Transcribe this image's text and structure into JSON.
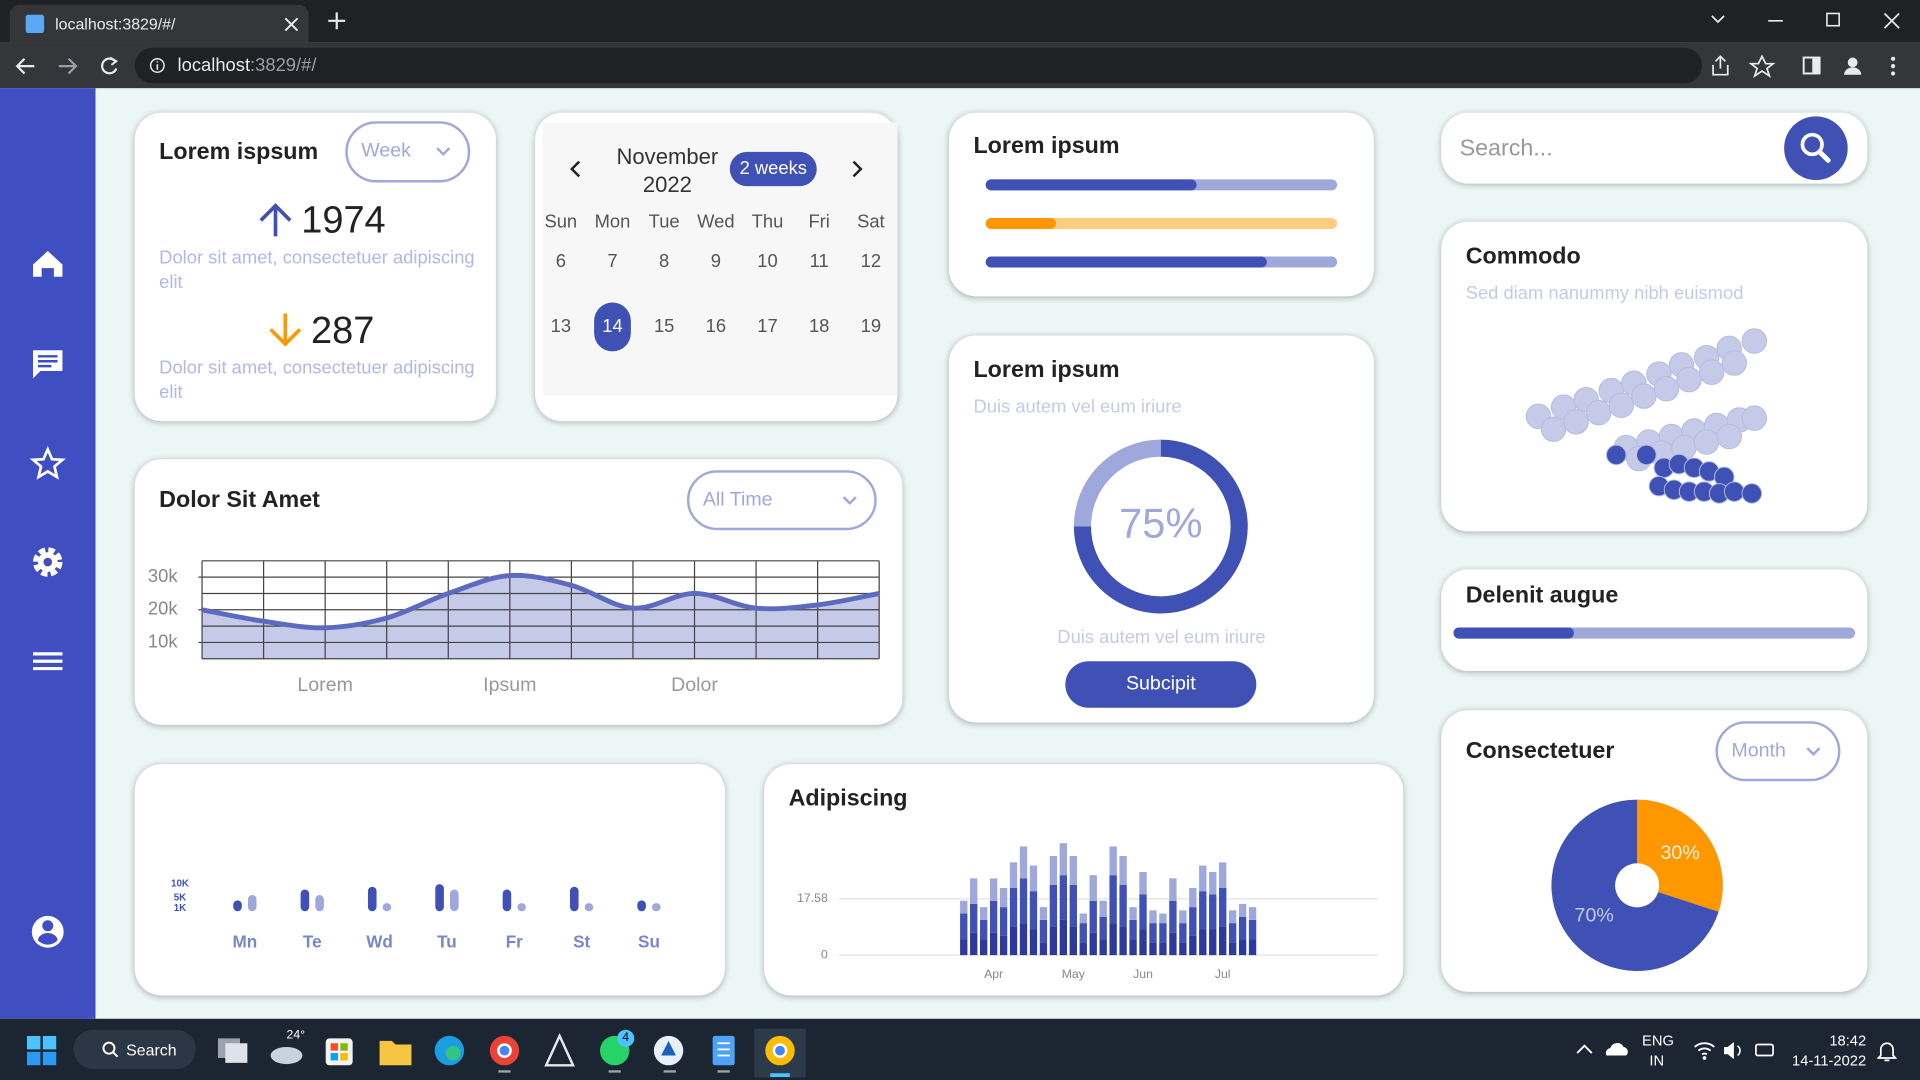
{
  "browser": {
    "tab_title": "localhost:3829/#/",
    "url_host": "localhost",
    "url_rest": ":3829/#/"
  },
  "taskbar": {
    "search": "Search",
    "weather": "24°",
    "badge": "4",
    "lang": "ENG",
    "region": "IN",
    "time": "18:42",
    "date": "14-11-2022"
  },
  "summary": {
    "title": "Lorem ispsum",
    "filter": "Week",
    "stats": [
      {
        "value": 1974,
        "text": "Dolor sit amet, consectetuer adipiscing elit"
      },
      {
        "value": 287,
        "text": "Dolor sit amet, consectetuer adipiscing elit"
      }
    ]
  },
  "calendar": {
    "title": "November 2022",
    "range": "2 weeks",
    "weekdays": [
      "Sun",
      "Mon",
      "Tue",
      "Wed",
      "Thu",
      "Fri",
      "Sat"
    ],
    "weeks": [
      [
        6,
        7,
        8,
        9,
        10,
        11,
        12
      ],
      [
        13,
        14,
        15,
        16,
        17,
        18,
        19
      ]
    ],
    "selected": 14
  },
  "progress": {
    "title": "Lorem ipsum",
    "xlim": [
      0,
      100
    ],
    "bars": [
      {
        "value": 60,
        "color": "#3f51b5",
        "track": "#9fa8da"
      },
      {
        "value": 20,
        "color": "#ff9800",
        "track": "#ffcc80"
      },
      {
        "value": 80,
        "color": "#3f51b5",
        "track": "#9fa8da"
      }
    ]
  },
  "search": {
    "placeholder": "Search..."
  },
  "commodo": {
    "title": "Commodo",
    "subtitle": "Sed diam nanummy nibh euismod",
    "chart": {
      "type": "scatter",
      "xlim": [
        0,
        100
      ],
      "ylim": [
        0,
        100
      ],
      "series": [
        {
          "color": "#c5cae9",
          "x": [
            8,
            18,
            27,
            37,
            46,
            56,
            65,
            75,
            84,
            94,
            14,
            23,
            32,
            41,
            50,
            59,
            68,
            77,
            86
          ],
          "y": [
            50,
            55,
            59,
            64,
            68,
            73,
            78,
            82,
            87,
            91,
            43,
            47,
            52,
            56,
            61,
            65,
            70,
            74,
            79
          ]
        },
        {
          "color": "#c5cae9",
          "x": [
            43,
            52,
            61,
            70,
            79,
            88,
            94,
            48,
            57,
            66,
            75,
            84
          ],
          "y": [
            33,
            36,
            39,
            42,
            45,
            48,
            49,
            27,
            30,
            33,
            36,
            39
          ]
        },
        {
          "color": "#3f51b5",
          "x": [
            39,
            51,
            58,
            64,
            70,
            76,
            82,
            56,
            62,
            68,
            74,
            80,
            86,
            93
          ],
          "y": [
            29,
            29,
            22,
            24,
            22,
            20,
            17,
            12,
            10,
            9,
            9,
            8,
            9,
            8
          ]
        }
      ]
    }
  },
  "delenit": {
    "title": "Delenit augue",
    "value": 30,
    "xlim": [
      0,
      100
    ],
    "color": "#3f51b5",
    "track": "#9fa8da"
  },
  "dolor": {
    "title": "Dolor Sit Amet",
    "filter": "All Time",
    "chart": {
      "type": "line",
      "x": [
        0,
        1,
        2,
        3,
        4,
        5,
        6,
        7,
        8,
        9,
        10,
        11
      ],
      "values": [
        20000,
        16500,
        14500,
        17500,
        25000,
        30500,
        27500,
        20500,
        25000,
        20500,
        21500,
        25000
      ],
      "xlim": [
        0,
        11
      ],
      "xticks": [
        {
          "value": 2,
          "label": "Lorem"
        },
        {
          "value": 5,
          "label": "Ipsum"
        },
        {
          "value": 8,
          "label": "Dolor"
        }
      ],
      "ylim": [
        5000,
        35000
      ],
      "yticks": [
        {
          "value": 10000,
          "label": "10k"
        },
        {
          "value": 20000,
          "label": "20k"
        },
        {
          "value": 30000,
          "label": "30k"
        }
      ],
      "xgrid": [
        0,
        1,
        2,
        3,
        4,
        5,
        6,
        7,
        8,
        9,
        10,
        11
      ],
      "ygrid": [
        5000,
        10000,
        15000,
        20000,
        25000,
        30000,
        35000
      ],
      "color": "#5c6bc0",
      "fill": "#c5cae9"
    }
  },
  "gauge": {
    "title": "Lorem ipsum",
    "subtitle": "Duis autem vel eum iriure",
    "chart": {
      "type": "donut",
      "value": 75,
      "value_label": "75%",
      "max": 100,
      "color": "#3f51b5",
      "track": "#9fa8da"
    },
    "caption": "Duis autem vel eum iriure",
    "button": "Subcipit"
  },
  "weekly": {
    "chart": {
      "type": "bar",
      "rounded": true,
      "categories": [
        "Mn",
        "Te",
        "Wd",
        "Tu",
        "Fr",
        "St",
        "Su"
      ],
      "series": [
        {
          "color": "#3f51b5",
          "values": [
            4000,
            8000,
            9000,
            10000,
            8000,
            9000,
            4000
          ]
        },
        {
          "color": "#9fa8da",
          "values": [
            6000,
            6000,
            3000,
            8000,
            3000,
            3000,
            3000
          ]
        }
      ],
      "ylim": [
        0,
        10000
      ],
      "yticks": [
        {
          "value": 10000,
          "label": "10K"
        },
        {
          "value": 5000,
          "label": "5K"
        },
        {
          "value": 1000,
          "label": "1K"
        }
      ],
      "grid": false
    }
  },
  "adipiscing": {
    "title": "Adipiscing",
    "chart": {
      "type": "bar",
      "stacked": true,
      "categories": [
        null,
        null,
        null,
        "Apr",
        null,
        null,
        null,
        null,
        null,
        null,
        null,
        "May",
        null,
        null,
        null,
        null,
        null,
        null,
        "Jun",
        null,
        null,
        null,
        null,
        null,
        null,
        null,
        "Jul",
        null,
        null,
        null
      ],
      "series": [
        {
          "color": "#2c3a9e",
          "values": [
            5,
            7,
            5,
            7,
            6,
            9,
            10,
            8,
            4,
            9,
            11,
            9,
            4,
            7,
            5,
            10,
            9,
            5,
            8,
            4,
            4,
            7,
            4,
            6,
            8,
            8,
            9,
            4,
            5,
            5
          ]
        },
        {
          "color": "#3f51b5",
          "values": [
            8,
            9,
            6,
            10,
            9,
            12,
            14,
            12,
            7,
            13,
            14,
            13,
            6,
            10,
            7,
            15,
            13,
            6,
            11,
            6,
            6,
            10,
            6,
            9,
            12,
            11,
            12,
            6,
            7,
            6
          ]
        },
        {
          "color": "#9fa8da",
          "values": [
            4,
            8,
            4,
            7,
            6,
            8,
            10,
            8,
            4,
            9,
            10,
            9,
            3,
            8,
            5,
            9,
            9,
            4,
            7,
            4,
            3,
            7,
            4,
            6,
            8,
            7,
            8,
            4,
            4,
            4
          ]
        }
      ],
      "ylim": [
        0,
        36
      ],
      "yticks": [
        0,
        17.58
      ],
      "grid": true
    }
  },
  "consectetuer": {
    "title": "Consectetuer",
    "filter": "Month",
    "chart": {
      "type": "pie",
      "values": [
        30,
        70
      ],
      "value_labels": [
        "30%",
        "70%"
      ],
      "colors": [
        "#ff9800",
        "#3f51b5"
      ],
      "hole": true
    }
  }
}
